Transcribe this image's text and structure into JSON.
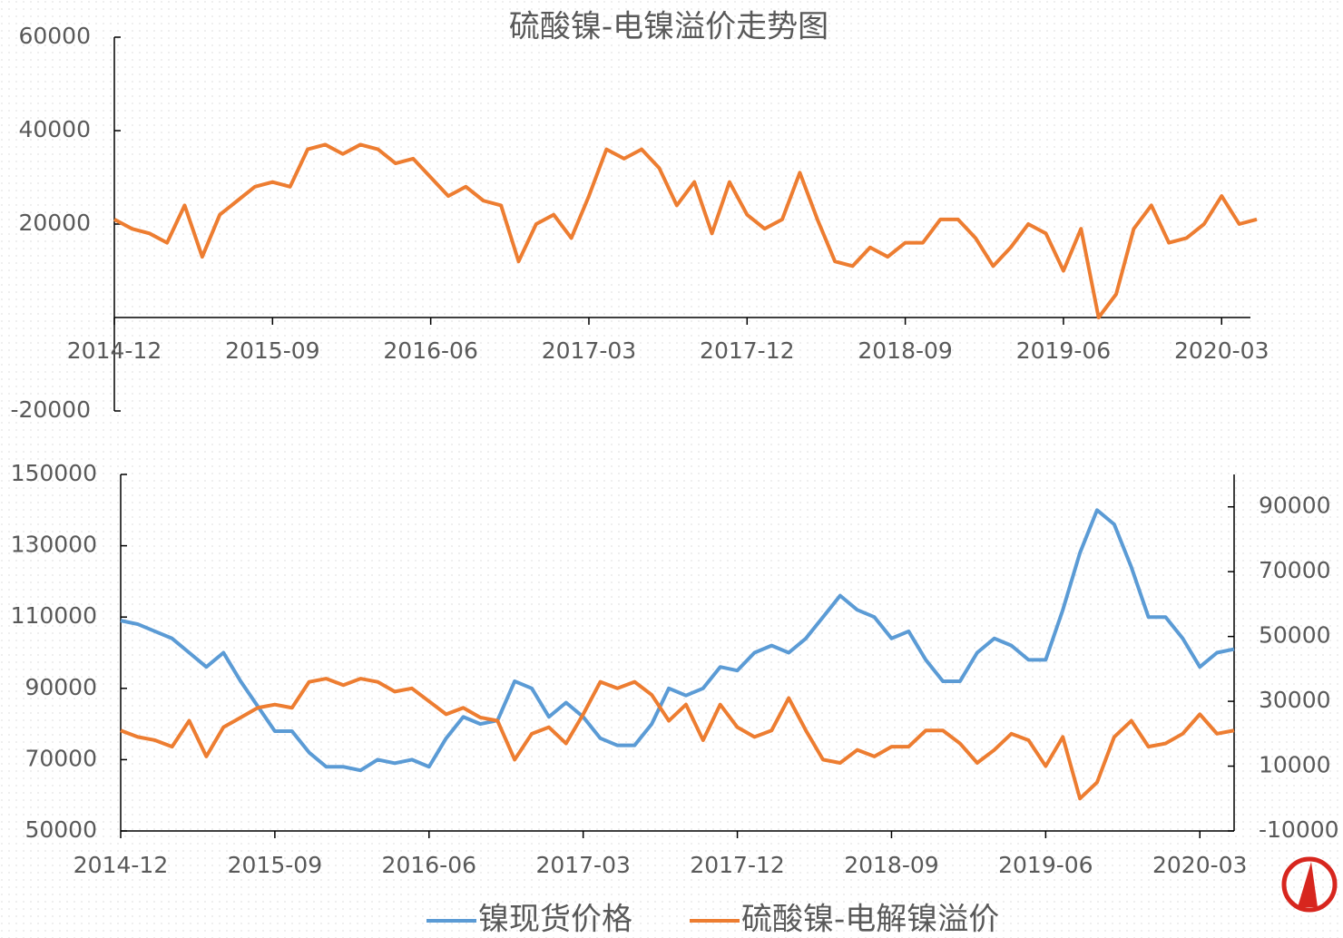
{
  "chart_data": [
    {
      "type": "line",
      "title": "硫酸镍-电镍溢价走势图",
      "x": [
        "2014-12",
        "2015-01",
        "2015-02",
        "2015-03",
        "2015-04",
        "2015-05",
        "2015-06",
        "2015-07",
        "2015-08",
        "2015-09",
        "2015-10",
        "2015-11",
        "2015-12",
        "2016-01",
        "2016-02",
        "2016-03",
        "2016-04",
        "2016-05",
        "2016-06",
        "2016-07",
        "2016-08",
        "2016-09",
        "2016-10",
        "2016-11",
        "2016-12",
        "2017-01",
        "2017-02",
        "2017-03",
        "2017-04",
        "2017-05",
        "2017-06",
        "2017-07",
        "2017-08",
        "2017-09",
        "2017-10",
        "2017-11",
        "2017-12",
        "2018-01",
        "2018-02",
        "2018-03",
        "2018-04",
        "2018-05",
        "2018-06",
        "2018-07",
        "2018-08",
        "2018-09",
        "2018-10",
        "2018-11",
        "2018-12",
        "2019-01",
        "2019-02",
        "2019-03",
        "2019-04",
        "2019-05",
        "2019-06",
        "2019-07",
        "2019-08",
        "2019-09",
        "2019-10",
        "2019-11",
        "2019-12",
        "2020-01",
        "2020-02",
        "2020-03",
        "2020-04",
        "2020-05"
      ],
      "values": [
        21000,
        19000,
        18000,
        16000,
        24000,
        13000,
        22000,
        25000,
        28000,
        29000,
        28000,
        36000,
        37000,
        35000,
        37000,
        36000,
        33000,
        34000,
        30000,
        26000,
        28000,
        25000,
        24000,
        12000,
        20000,
        22000,
        17000,
        26000,
        36000,
        34000,
        36000,
        32000,
        24000,
        29000,
        18000,
        29000,
        22000,
        19000,
        21000,
        31000,
        21000,
        12000,
        11000,
        15000,
        13000,
        16000,
        16000,
        21000,
        21000,
        17000,
        11000,
        15000,
        20000,
        18000,
        10000,
        19000,
        0,
        5000,
        19000,
        24000,
        16000,
        17000,
        20000,
        26000,
        20000,
        21000
      ],
      "color": "#ed7d31",
      "xlim": [
        "2014-12",
        "2020-05"
      ],
      "xticks": [
        "2014-12",
        "2015-09",
        "2016-06",
        "2017-03",
        "2017-12",
        "2018-09",
        "2019-06",
        "2020-03"
      ],
      "ylim": [
        -20000,
        60000
      ],
      "yticks": [
        -20000,
        20000,
        40000,
        60000
      ]
    },
    {
      "type": "line",
      "x": [
        "2014-12",
        "2015-01",
        "2015-02",
        "2015-03",
        "2015-04",
        "2015-05",
        "2015-06",
        "2015-07",
        "2015-08",
        "2015-09",
        "2015-10",
        "2015-11",
        "2015-12",
        "2016-01",
        "2016-02",
        "2016-03",
        "2016-04",
        "2016-05",
        "2016-06",
        "2016-07",
        "2016-08",
        "2016-09",
        "2016-10",
        "2016-11",
        "2016-12",
        "2017-01",
        "2017-02",
        "2017-03",
        "2017-04",
        "2017-05",
        "2017-06",
        "2017-07",
        "2017-08",
        "2017-09",
        "2017-10",
        "2017-11",
        "2017-12",
        "2018-01",
        "2018-02",
        "2018-03",
        "2018-04",
        "2018-05",
        "2018-06",
        "2018-07",
        "2018-08",
        "2018-09",
        "2018-10",
        "2018-11",
        "2018-12",
        "2019-01",
        "2019-02",
        "2019-03",
        "2019-04",
        "2019-05",
        "2019-06",
        "2019-07",
        "2019-08",
        "2019-09",
        "2019-10",
        "2019-11",
        "2019-12",
        "2020-01",
        "2020-02",
        "2020-03",
        "2020-04",
        "2020-05"
      ],
      "series": [
        {
          "name": "镍现货价格",
          "color": "#5b9bd5",
          "values": [
            109000,
            108000,
            106000,
            104000,
            100000,
            96000,
            100000,
            92000,
            85000,
            78000,
            78000,
            72000,
            68000,
            68000,
            67000,
            70000,
            69000,
            70000,
            68000,
            76000,
            82000,
            80000,
            81000,
            92000,
            90000,
            82000,
            86000,
            82000,
            76000,
            74000,
            74000,
            80000,
            90000,
            88000,
            90000,
            96000,
            95000,
            100000,
            102000,
            100000,
            104000,
            110000,
            116000,
            112000,
            110000,
            104000,
            106000,
            98000,
            92000,
            92000,
            100000,
            104000,
            102000,
            98000,
            98000,
            112000,
            128000,
            140000,
            136000,
            124000,
            110000,
            110000,
            104000,
            96000,
            100000,
            101000
          ]
        },
        {
          "name": "硫酸镍-电解镍溢价",
          "color": "#ed7d31",
          "axis": "y2",
          "values": [
            21000,
            19000,
            18000,
            16000,
            24000,
            13000,
            22000,
            25000,
            28000,
            29000,
            28000,
            36000,
            37000,
            35000,
            37000,
            36000,
            33000,
            34000,
            30000,
            26000,
            28000,
            25000,
            24000,
            12000,
            20000,
            22000,
            17000,
            26000,
            36000,
            34000,
            36000,
            32000,
            24000,
            29000,
            18000,
            29000,
            22000,
            19000,
            21000,
            31000,
            21000,
            12000,
            11000,
            15000,
            13000,
            16000,
            16000,
            21000,
            21000,
            17000,
            11000,
            15000,
            20000,
            18000,
            10000,
            19000,
            0,
            5000,
            19000,
            24000,
            16000,
            17000,
            20000,
            26000,
            20000,
            21000
          ]
        }
      ],
      "xlim": [
        "2014-12",
        "2020-05"
      ],
      "xticks": [
        "2014-12",
        "2015-09",
        "2016-06",
        "2017-03",
        "2017-12",
        "2018-09",
        "2019-06",
        "2020-03"
      ],
      "ylim": [
        50000,
        150000
      ],
      "yticks": [
        50000,
        70000,
        90000,
        110000,
        130000,
        150000
      ],
      "y2lim": [
        -10000,
        100000
      ],
      "y2ticks": [
        -10000,
        10000,
        30000,
        50000,
        70000,
        90000
      ]
    }
  ]
}
